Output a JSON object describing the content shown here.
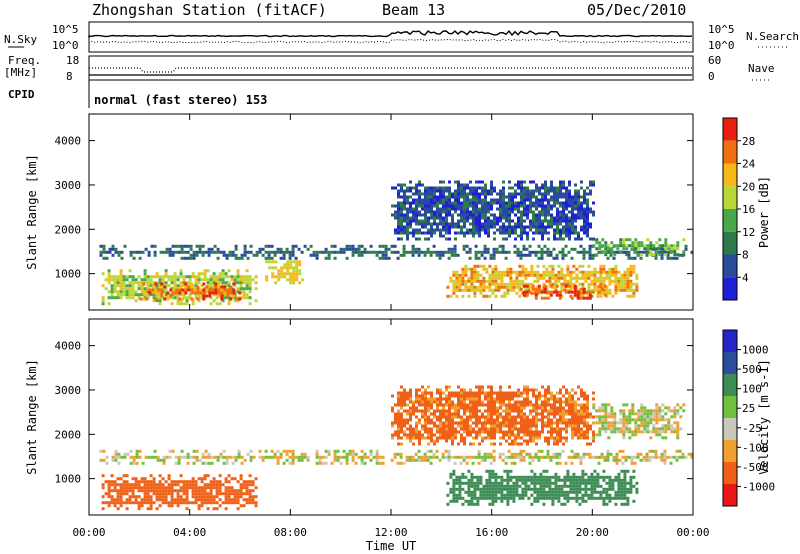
{
  "header": {
    "title": "Zhongshan Station (fitACF)",
    "beam": "Beam 13",
    "date": "05/Dec/2010"
  },
  "strip_panels": {
    "nsky_label": "N.Sky",
    "nsearch_label": "N.Search",
    "freq_label_1": "Freq.",
    "freq_label_2": "[MHz]",
    "nave_label": "Nave",
    "cpid_label": "CPID",
    "left_ticks_top": [
      "10^5",
      "10^0"
    ],
    "right_ticks_top": [
      "10^5",
      "10^0"
    ],
    "left_ticks_freq": [
      "18",
      "8"
    ],
    "right_ticks_nave": [
      "60",
      "0"
    ],
    "cpid_text": "normal (fast stereo) 153"
  },
  "colors": {
    "power": [
      "#1f1fd8",
      "#2a4a9c",
      "#2f7a4a",
      "#4aa84a",
      "#b8d838",
      "#f8b818",
      "#f07010",
      "#e82010"
    ],
    "velocity": [
      "#e81818",
      "#f06018",
      "#f0a030",
      "#c8c8bc",
      "#70c040",
      "#3c8c54",
      "#2c4c9c",
      "#2424c8"
    ]
  },
  "chart_data": [
    {
      "type": "heatmap",
      "ylabel": "Slant Range [km]",
      "xlabel": "Time UT",
      "x_ticks": [
        "00:00",
        "04:00",
        "08:00",
        "12:00",
        "16:00",
        "20:00",
        "00:00"
      ],
      "y_ticks": [
        "1000",
        "2000",
        "3000",
        "4000"
      ],
      "ylim": [
        180,
        4600
      ],
      "xlim_hours": [
        0,
        24
      ],
      "colorbar_label": "Power [dB]",
      "colorbar_ticks": [
        "4",
        "8",
        "12",
        "16",
        "20",
        "24",
        "28"
      ],
      "clim": [
        0,
        32
      ],
      "regions": [
        {
          "t0": 0.5,
          "t1": 6.6,
          "r0": 300,
          "r1": 1100,
          "power": 18
        },
        {
          "t0": 2.0,
          "t1": 6.0,
          "r0": 400,
          "r1": 800,
          "power": 27
        },
        {
          "t0": 0.3,
          "t1": 24,
          "r0": 1350,
          "r1": 1650,
          "power": 8
        },
        {
          "t0": 7.0,
          "t1": 8.5,
          "r0": 800,
          "r1": 1300,
          "power": 20
        },
        {
          "t0": 14.2,
          "t1": 21.8,
          "r0": 500,
          "r1": 1200,
          "power": 22
        },
        {
          "t0": 17.0,
          "t1": 20.5,
          "r0": 450,
          "r1": 750,
          "power": 28
        },
        {
          "t0": 20.0,
          "t1": 23.6,
          "r0": 1400,
          "r1": 1800,
          "power": 14
        },
        {
          "t0": 12.0,
          "t1": 20.0,
          "r0": 1800,
          "r1": 3100,
          "power": 6
        }
      ]
    },
    {
      "type": "heatmap",
      "ylabel": "Slant Range [km]",
      "xlabel": "Time UT",
      "x_ticks": [
        "00:00",
        "04:00",
        "08:00",
        "12:00",
        "16:00",
        "20:00",
        "00:00"
      ],
      "y_ticks": [
        "1000",
        "2000",
        "3000",
        "4000"
      ],
      "ylim": [
        180,
        4600
      ],
      "xlim_hours": [
        0,
        24
      ],
      "colorbar_label": "Velocity [m s-1]",
      "colorbar_ticks": [
        "1000",
        "500",
        "100",
        "25",
        "-25",
        "-100",
        "-500",
        "-1000"
      ],
      "regions": [
        {
          "t0": 0.5,
          "t1": 6.6,
          "r0": 300,
          "r1": 1100,
          "velocity": -300
        },
        {
          "t0": 0.3,
          "t1": 24,
          "r0": 1350,
          "r1": 1650,
          "velocity": 0
        },
        {
          "t0": 14.2,
          "t1": 21.8,
          "r0": 400,
          "r1": 1200,
          "velocity": 200
        },
        {
          "t0": 12.0,
          "t1": 20.0,
          "r0": 1800,
          "r1": 3100,
          "velocity": -150
        },
        {
          "t0": 20.0,
          "t1": 23.6,
          "r0": 1900,
          "r1": 2700,
          "velocity": 0
        }
      ]
    }
  ]
}
